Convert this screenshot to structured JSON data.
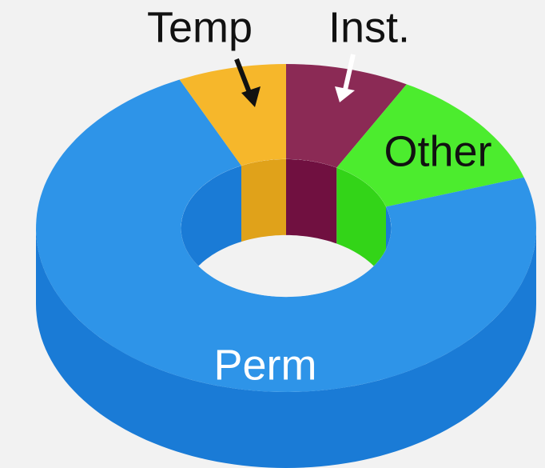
{
  "chart_data": {
    "type": "pie",
    "donut": true,
    "categories": [
      "Inst.",
      "Other",
      "Perm",
      "Temp"
    ],
    "values": [
      8,
      12,
      73,
      7
    ],
    "colors": [
      "#8b2a55",
      "#4cec2e",
      "#2e94e8",
      "#f6b72b"
    ],
    "side_colors": [
      "#701040",
      "#33d418",
      "#1a7bd6",
      "#e0a21a"
    ]
  }
}
